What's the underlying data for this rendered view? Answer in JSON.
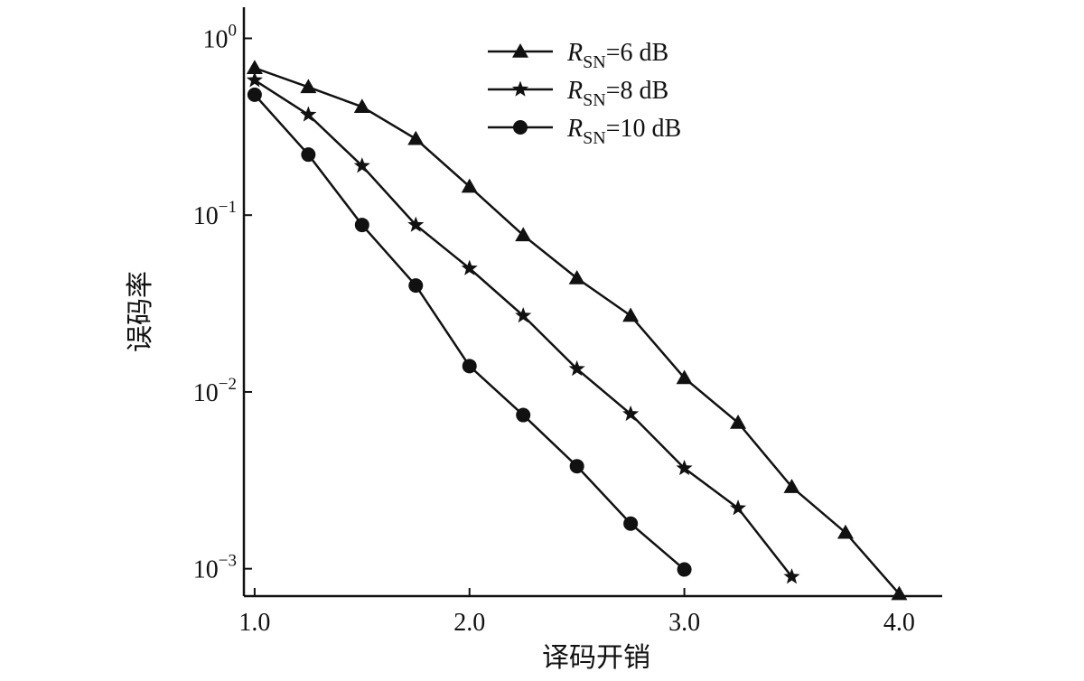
{
  "chart_data": {
    "type": "line",
    "title": "",
    "xlabel": "译码开销",
    "ylabel": "误码率",
    "y_scale": "log",
    "xlim": [
      0.95,
      4.2
    ],
    "ylim": [
      0.0007,
      1.5
    ],
    "x_ticks": [
      1.0,
      2.0,
      3.0,
      4.0
    ],
    "x_tick_labels": [
      "1.0",
      "2.0",
      "3.0",
      "4.0"
    ],
    "y_ticks": [
      1,
      0.1,
      0.01,
      0.001
    ],
    "y_tick_labels": [
      {
        "base": "10",
        "exp": "0"
      },
      {
        "base": "10",
        "exp": "−1"
      },
      {
        "base": "10",
        "exp": "−2"
      },
      {
        "base": "10",
        "exp": "−3"
      }
    ],
    "grid": false,
    "legend_position": "top-right",
    "series": [
      {
        "name": "RSN=6 dB",
        "legend": {
          "italic": "R",
          "sub": "SN",
          "rest": "=6 dB"
        },
        "marker": "triangle",
        "color": "#111111",
        "x": [
          1.0,
          1.25,
          1.5,
          1.75,
          2.0,
          2.25,
          2.5,
          2.75,
          3.0,
          3.25,
          3.5,
          3.75,
          4.0
        ],
        "y": [
          0.68,
          0.53,
          0.41,
          0.27,
          0.145,
          0.077,
          0.044,
          0.027,
          0.012,
          0.0067,
          0.0029,
          0.0016,
          0.00072
        ]
      },
      {
        "name": "RSN=8 dB",
        "legend": {
          "italic": "R",
          "sub": "SN",
          "rest": "=8 dB"
        },
        "marker": "star",
        "color": "#111111",
        "x": [
          1.0,
          1.25,
          1.5,
          1.75,
          2.0,
          2.25,
          2.5,
          2.75,
          3.0,
          3.25,
          3.5
        ],
        "y": [
          0.58,
          0.37,
          0.19,
          0.088,
          0.05,
          0.027,
          0.0135,
          0.0075,
          0.0037,
          0.0022,
          0.0009
        ]
      },
      {
        "name": "RSN=10 dB",
        "legend": {
          "italic": "R",
          "sub": "SN",
          "rest": "=10 dB"
        },
        "marker": "circle",
        "color": "#111111",
        "x": [
          1.0,
          1.25,
          1.5,
          1.75,
          2.0,
          2.25,
          2.5,
          2.75,
          3.0
        ],
        "y": [
          0.48,
          0.22,
          0.088,
          0.04,
          0.014,
          0.0074,
          0.0038,
          0.0018,
          0.00099
        ]
      }
    ]
  }
}
